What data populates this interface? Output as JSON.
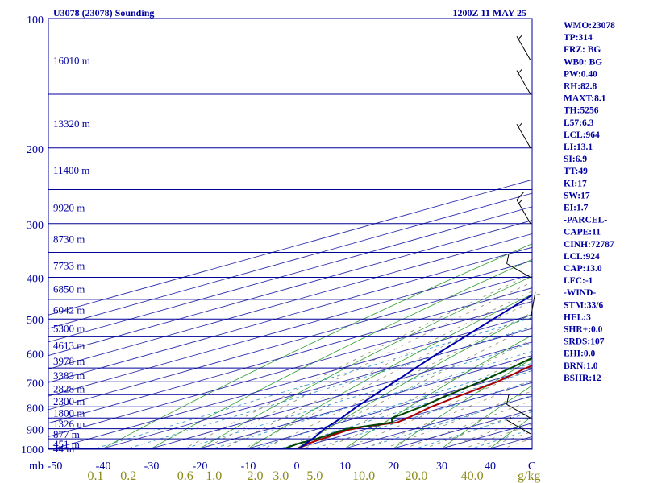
{
  "header": {
    "title": "U3078 (23078) Sounding",
    "time": "1200Z 11 MAY 25"
  },
  "colors": {
    "isobar": "#000099",
    "isotherm": "#2f2fb0",
    "dry_adiabat": "#2e9e2e",
    "moist_adiabat": "#8a8a66",
    "mixing_ratio": "#3399cc",
    "temperature": "#aa0000",
    "dewpoint": "#004400",
    "parcel": "#0000aa",
    "wind_barb": "#000000",
    "text": "#0000a0",
    "mixing_label": "#8a8a18"
  },
  "indices": [
    "WMO:23078",
    "TP:314",
    "FRZ: BG",
    "WB0: BG",
    "PW:0.40",
    "RH:82.8",
    "MAXT:8.1",
    "TH:5256",
    "L57:6.3",
    "LCL:964",
    "LI:13.1",
    "SI:6.9",
    "TT:49",
    "KI:17",
    "SW:17",
    "EI:1.7",
    "-PARCEL-",
    "CAPE:11",
    "CINH:72787",
    "LCL:924",
    "CAP:13.0",
    "LFC:-1",
    "-WIND-",
    "STM:33/6",
    "HEL:3",
    "SHR+:0.0",
    "SRDS:107",
    "EHI:0.0",
    "BRN:1.0",
    "BSHR:12"
  ],
  "chart_data": {
    "type": "line",
    "title": "U3078 (23078) Sounding",
    "xlabel": "",
    "ylabel": "mb",
    "x_unit": "C",
    "y_unit": "mb",
    "y_scale": "log",
    "ylim": [
      1000,
      100
    ],
    "xlim_at_1000mb": [
      -50,
      50
    ],
    "pressure_ticks": [
      1000,
      900,
      800,
      700,
      600,
      500,
      400,
      300,
      200,
      100
    ],
    "pressure_tick_labels": [
      "1000",
      "900",
      "800",
      "700",
      "600",
      "500",
      "400",
      "300",
      "200",
      "100"
    ],
    "temperature_ticks": [
      -50,
      -40,
      -30,
      -20,
      -10,
      0,
      10,
      20,
      30,
      40
    ],
    "temperature_tick_labels": [
      "-50",
      "-40",
      "-30",
      "-20",
      "-10",
      "0",
      "10",
      "20",
      "30",
      "40"
    ],
    "axis_corner_label": "mb",
    "temperature_axis_unit": "C",
    "isobars_mb": [
      1000,
      950,
      900,
      850,
      800,
      750,
      700,
      650,
      600,
      550,
      500,
      450,
      400,
      350,
      300,
      250,
      200,
      150,
      100
    ],
    "height_labels": [
      {
        "p": 1000,
        "text": "44 m"
      },
      {
        "p": 975,
        "text": "451 m"
      },
      {
        "p": 925,
        "text": "877 m"
      },
      {
        "p": 875,
        "text": "1326 m"
      },
      {
        "p": 825,
        "text": "1800 m"
      },
      {
        "p": 775,
        "text": "2300 m"
      },
      {
        "p": 725,
        "text": "2828 m"
      },
      {
        "p": 675,
        "text": "3383 m"
      },
      {
        "p": 625,
        "text": "3978 m"
      },
      {
        "p": 575,
        "text": "4613 m"
      },
      {
        "p": 525,
        "text": "5300 m"
      },
      {
        "p": 475,
        "text": "6042 m"
      },
      {
        "p": 425,
        "text": "6850 m"
      },
      {
        "p": 375,
        "text": "7733 m"
      },
      {
        "p": 325,
        "text": "8730 m"
      },
      {
        "p": 275,
        "text": "9920 m"
      },
      {
        "p": 225,
        "text": "11400 m"
      },
      {
        "p": 175,
        "text": "13320 m"
      },
      {
        "p": 125,
        "text": "16010 m"
      }
    ],
    "mixing_ratio_labels": [
      "0.1",
      "0.2",
      "0.6",
      "1.0",
      "2.0",
      "3.0",
      "5.0",
      "10.0",
      "20.0",
      "40.0"
    ],
    "mixing_ratio_values": [
      0.1,
      0.2,
      0.6,
      1.0,
      2.0,
      3.0,
      5.0,
      10.0,
      20.0,
      40.0
    ],
    "mixing_ratio_unit": "g/kg",
    "series": [
      {
        "name": "Temperature",
        "points": [
          {
            "p": 1000,
            "t": 0.2
          },
          {
            "p": 990,
            "t": -0.2
          },
          {
            "p": 975,
            "t": -1.2
          },
          {
            "p": 950,
            "t": -1.8
          },
          {
            "p": 930,
            "t": -2.4
          },
          {
            "p": 905,
            "t": -3.0
          },
          {
            "p": 890,
            "t": -2.1
          },
          {
            "p": 870,
            "t": 1.6
          },
          {
            "p": 850,
            "t": 0.5
          },
          {
            "p": 800,
            "t": -3.0
          },
          {
            "p": 760,
            "t": -5.0
          },
          {
            "p": 700,
            "t": -7.8
          },
          {
            "p": 650,
            "t": -12.0
          },
          {
            "p": 600,
            "t": -15.5
          },
          {
            "p": 560,
            "t": -19.0
          },
          {
            "p": 500,
            "t": -23.6
          },
          {
            "p": 460,
            "t": -27.9
          },
          {
            "p": 420,
            "t": -33.3
          },
          {
            "p": 380,
            "t": -38.5
          },
          {
            "p": 340,
            "t": -44.6
          },
          {
            "p": 314,
            "t": -48.9
          },
          {
            "p": 300,
            "t": -47.9
          },
          {
            "p": 280,
            "t": -44.1
          },
          {
            "p": 260,
            "t": -42.0
          },
          {
            "p": 245,
            "t": -38.3
          },
          {
            "p": 230,
            "t": -36.8
          },
          {
            "p": 200,
            "t": -37.7
          },
          {
            "p": 180,
            "t": -38.5
          },
          {
            "p": 160,
            "t": -41.4
          },
          {
            "p": 150,
            "t": -41.4
          },
          {
            "p": 140,
            "t": -42.8
          },
          {
            "p": 120,
            "t": -44.6
          },
          {
            "p": 100,
            "t": -48.0
          }
        ]
      },
      {
        "name": "Dewpoint",
        "points": [
          {
            "p": 1000,
            "t": -2.4
          },
          {
            "p": 975,
            "t": -3.2
          },
          {
            "p": 950,
            "t": -3.0
          },
          {
            "p": 900,
            "t": -4.0
          },
          {
            "p": 870,
            "t": 0.5
          },
          {
            "p": 850,
            "t": -2.8
          },
          {
            "p": 800,
            "t": -5.0
          },
          {
            "p": 760,
            "t": -7.6
          },
          {
            "p": 700,
            "t": -11.3
          },
          {
            "p": 650,
            "t": -15.2
          },
          {
            "p": 600,
            "t": -19.7
          },
          {
            "p": 560,
            "t": -23.0
          },
          {
            "p": 520,
            "t": -30.6
          },
          {
            "p": 500,
            "t": -33.4
          },
          {
            "p": 460,
            "t": -37.6
          },
          {
            "p": 400,
            "t": -44.2
          },
          {
            "p": 360,
            "t": -49.2
          },
          {
            "p": 314,
            "t": -55.6
          },
          {
            "p": 300,
            "t": -55.1
          },
          {
            "p": 270,
            "t": -51.1
          },
          {
            "p": 250,
            "t": -47.6
          },
          {
            "p": 220,
            "t": -51.3
          },
          {
            "p": 200,
            "t": -51.4
          },
          {
            "p": 180,
            "t": -54.1
          },
          {
            "p": 160,
            "t": -57.0
          },
          {
            "p": 150,
            "t": -57.2
          },
          {
            "p": 140,
            "t": -58.5
          },
          {
            "p": 125,
            "t": -60.8
          },
          {
            "p": 100,
            "t": -61.9
          }
        ]
      },
      {
        "name": "Parcel",
        "points": [
          {
            "p": 1000,
            "t": 0.5
          },
          {
            "p": 950,
            "t": -3.8
          },
          {
            "p": 900,
            "t": -8.8
          },
          {
            "p": 850,
            "t": -13.2
          },
          {
            "p": 800,
            "t": -18.4
          },
          {
            "p": 700,
            "t": -29.0
          },
          {
            "p": 600,
            "t": -41.2
          },
          {
            "p": 500,
            "t": -55.0
          },
          {
            "p": 400,
            "t": -71.9
          },
          {
            "p": 300,
            "t": -92.1
          },
          {
            "p": 200,
            "t": -117.9
          },
          {
            "p": 150,
            "t": -133.6
          },
          {
            "p": 130,
            "t": -144.6
          }
        ]
      }
    ],
    "wind_barbs": [
      {
        "p": 925,
        "dir": 300,
        "speed_kt": 5
      },
      {
        "p": 850,
        "dir": 300,
        "speed_kt": 10
      },
      {
        "p": 500,
        "dir": 10,
        "speed_kt": 5
      },
      {
        "p": 400,
        "dir": 300,
        "speed_kt": 10
      },
      {
        "p": 300,
        "dir": 330,
        "speed_kt": 15
      },
      {
        "p": 200,
        "dir": 330,
        "speed_kt": 5
      },
      {
        "p": 150,
        "dir": 330,
        "speed_kt": 5
      },
      {
        "p": 125,
        "dir": 330,
        "speed_kt": 5
      }
    ],
    "grid": true,
    "legend": "none"
  }
}
